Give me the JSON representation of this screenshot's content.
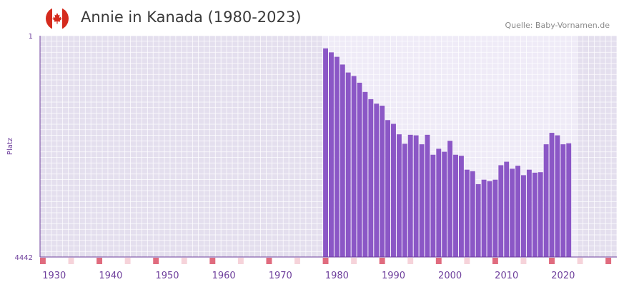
{
  "header": {
    "title": "Annie in Kanada (1980-2023)",
    "source": "Quelle: Baby-Vornamen.de",
    "flag_icon": "canada-flag-icon"
  },
  "colors": {
    "bar": "#8b57c6",
    "plot_bg": "#e4dfee",
    "highlight_bg": "#efebf7",
    "axis_text": "#6e3f9c",
    "decade_marker": "#e06b7e",
    "five_year_marker": "#f6d3da",
    "flag_red": "#d52b1e"
  },
  "chart_data": {
    "type": "bar",
    "title": "Annie in Kanada (1980-2023)",
    "xlabel": "",
    "ylabel": "Platz",
    "y_axis_reversed": true,
    "ylim": [
      1,
      4442
    ],
    "y_ticks": [
      "1",
      "4442"
    ],
    "xlim": [
      1928,
      2029
    ],
    "x_ticks": [
      "1930",
      "1940",
      "1950",
      "1960",
      "1970",
      "1980",
      "1990",
      "2000",
      "2010",
      "2020"
    ],
    "highlight_range": [
      1978,
      2022
    ],
    "x": [
      1978,
      1979,
      1980,
      1981,
      1982,
      1983,
      1984,
      1985,
      1986,
      1987,
      1988,
      1989,
      1990,
      1991,
      1992,
      1993,
      1994,
      1995,
      1996,
      1997,
      1998,
      1999,
      2000,
      2001,
      2002,
      2003,
      2004,
      2005,
      2006,
      2007,
      2008,
      2009,
      2010,
      2011,
      2012,
      2013,
      2014,
      2015,
      2016,
      2017,
      2018,
      2019,
      2020,
      2021,
      2022
    ],
    "values": [
      255,
      335,
      425,
      580,
      740,
      810,
      945,
      1130,
      1275,
      1365,
      1405,
      1695,
      1770,
      1980,
      2170,
      1990,
      2000,
      2180,
      1990,
      2390,
      2270,
      2330,
      2110,
      2390,
      2410,
      2690,
      2720,
      2980,
      2890,
      2920,
      2890,
      2600,
      2530,
      2670,
      2610,
      2800,
      2690,
      2750,
      2740,
      2180,
      1950,
      2000,
      2180,
      2160,
      0
    ]
  }
}
